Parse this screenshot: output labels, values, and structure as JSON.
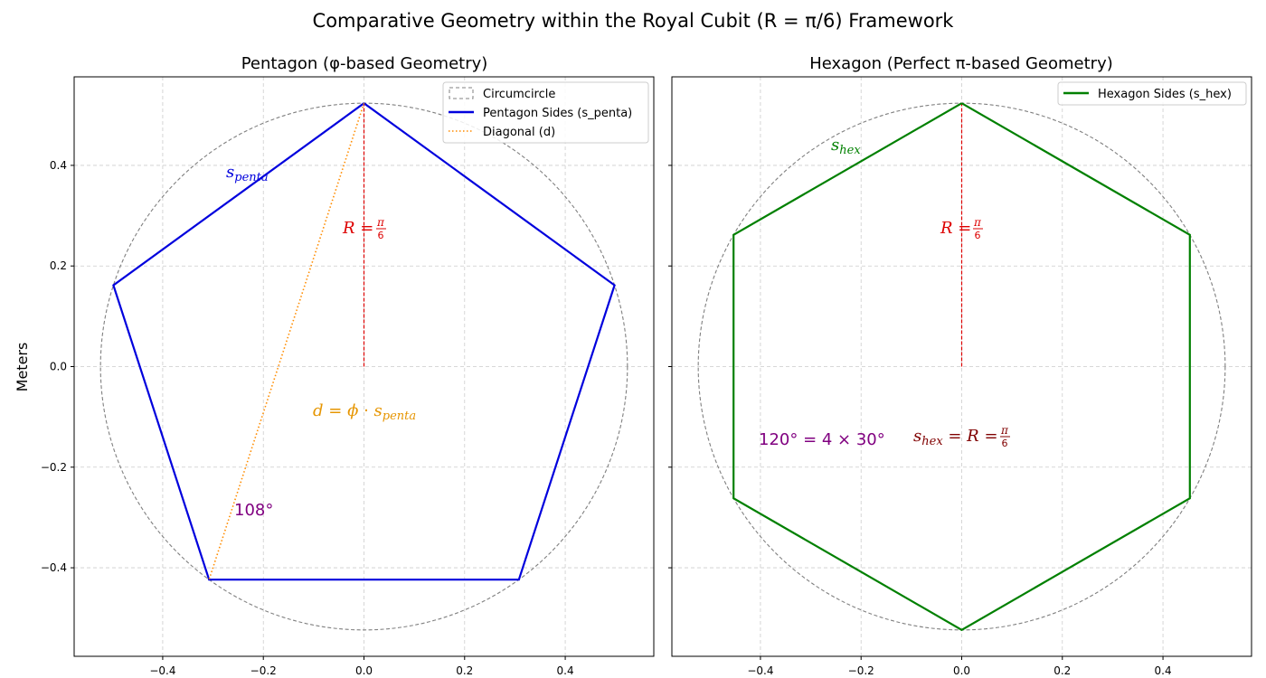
{
  "figure": {
    "title": "Comparative Geometry within the Royal Cubit (R = π/6) Framework",
    "ylabel": "Meters"
  },
  "chart_data": [
    {
      "type": "line",
      "title": "Pentagon (φ-based Geometry)",
      "xlim": [
        -0.576,
        0.576
      ],
      "ylim": [
        -0.576,
        0.576
      ],
      "xticks": [
        "−0.4",
        "−0.2",
        "0.0",
        "0.2",
        "0.4"
      ],
      "yticks": [
        "−0.4",
        "−0.2",
        "0.0",
        "0.2",
        "0.4"
      ],
      "xtick_values": [
        -0.4,
        -0.2,
        0.0,
        0.2,
        0.4
      ],
      "ytick_values": [
        -0.4,
        -0.2,
        0.0,
        0.2,
        0.4
      ],
      "grid": true,
      "legend_position": "top-right",
      "colors": {
        "sides": "#0000dd",
        "diagonal": "#ff8c00",
        "circle": "#808080",
        "radius": "#dd0000",
        "angle": "#800080",
        "phi": "#e69500"
      },
      "circumcircle": {
        "name": "Circumcircle",
        "radius": 0.5236
      },
      "series": [
        {
          "name": "Pentagon Sides (s_penta)",
          "x": [
            0.0,
            0.498,
            0.3078,
            -0.3078,
            -0.498,
            0.0
          ],
          "y": [
            0.5236,
            0.1618,
            -0.4236,
            -0.4236,
            0.1618,
            0.5236
          ]
        },
        {
          "name": "Diagonal (d)",
          "x": [
            0.0,
            -0.3078
          ],
          "y": [
            0.5236,
            -0.4236
          ]
        }
      ],
      "radius_line": {
        "x": [
          0.0,
          0.0
        ],
        "y": [
          0.0,
          0.5236
        ]
      },
      "annotations": {
        "side_label": {
          "base": "s",
          "sub": "penta"
        },
        "radius_label": {
          "text": "R =",
          "num": "π",
          "den": "6"
        },
        "diagonal_label": {
          "d": "d",
          "eq": " = ",
          "phi": "ϕ",
          "dot": " · ",
          "s": "s",
          "sub": "penta"
        },
        "angle_label": "108°"
      }
    },
    {
      "type": "line",
      "title": "Hexagon (Perfect π-based Geometry)",
      "xlim": [
        -0.576,
        0.576
      ],
      "ylim": [
        -0.576,
        0.576
      ],
      "xticks": [
        "−0.4",
        "−0.2",
        "0.0",
        "0.2",
        "0.4"
      ],
      "xtick_values": [
        -0.4,
        -0.2,
        0.0,
        0.2,
        0.4
      ],
      "ytick_values": [
        -0.4,
        -0.2,
        0.0,
        0.2,
        0.4
      ],
      "grid": true,
      "legend_position": "top-right",
      "colors": {
        "sides": "#008000",
        "circle": "#808080",
        "radius": "#dd0000",
        "angle": "#800080",
        "eq": "#800000"
      },
      "circumcircle": {
        "radius": 0.5236
      },
      "series": [
        {
          "name": "Hexagon Sides (s_hex)",
          "x": [
            0.0,
            0.4534,
            0.4534,
            0.0,
            -0.4534,
            -0.4534,
            0.0
          ],
          "y": [
            0.5236,
            0.2618,
            -0.2618,
            -0.5236,
            -0.2618,
            0.2618,
            0.5236
          ]
        }
      ],
      "radius_line": {
        "x": [
          0.0,
          0.0
        ],
        "y": [
          0.0,
          0.5236
        ]
      },
      "annotations": {
        "side_label": {
          "base": "s",
          "sub": "hex"
        },
        "radius_label": {
          "text": "R =",
          "num": "π",
          "den": "6"
        },
        "angle_label": "120° = 4 × 30°",
        "eq_label": {
          "s": "s",
          "sub": "hex",
          "rest": " = R = ",
          "num": "π",
          "den": "6"
        }
      }
    }
  ]
}
